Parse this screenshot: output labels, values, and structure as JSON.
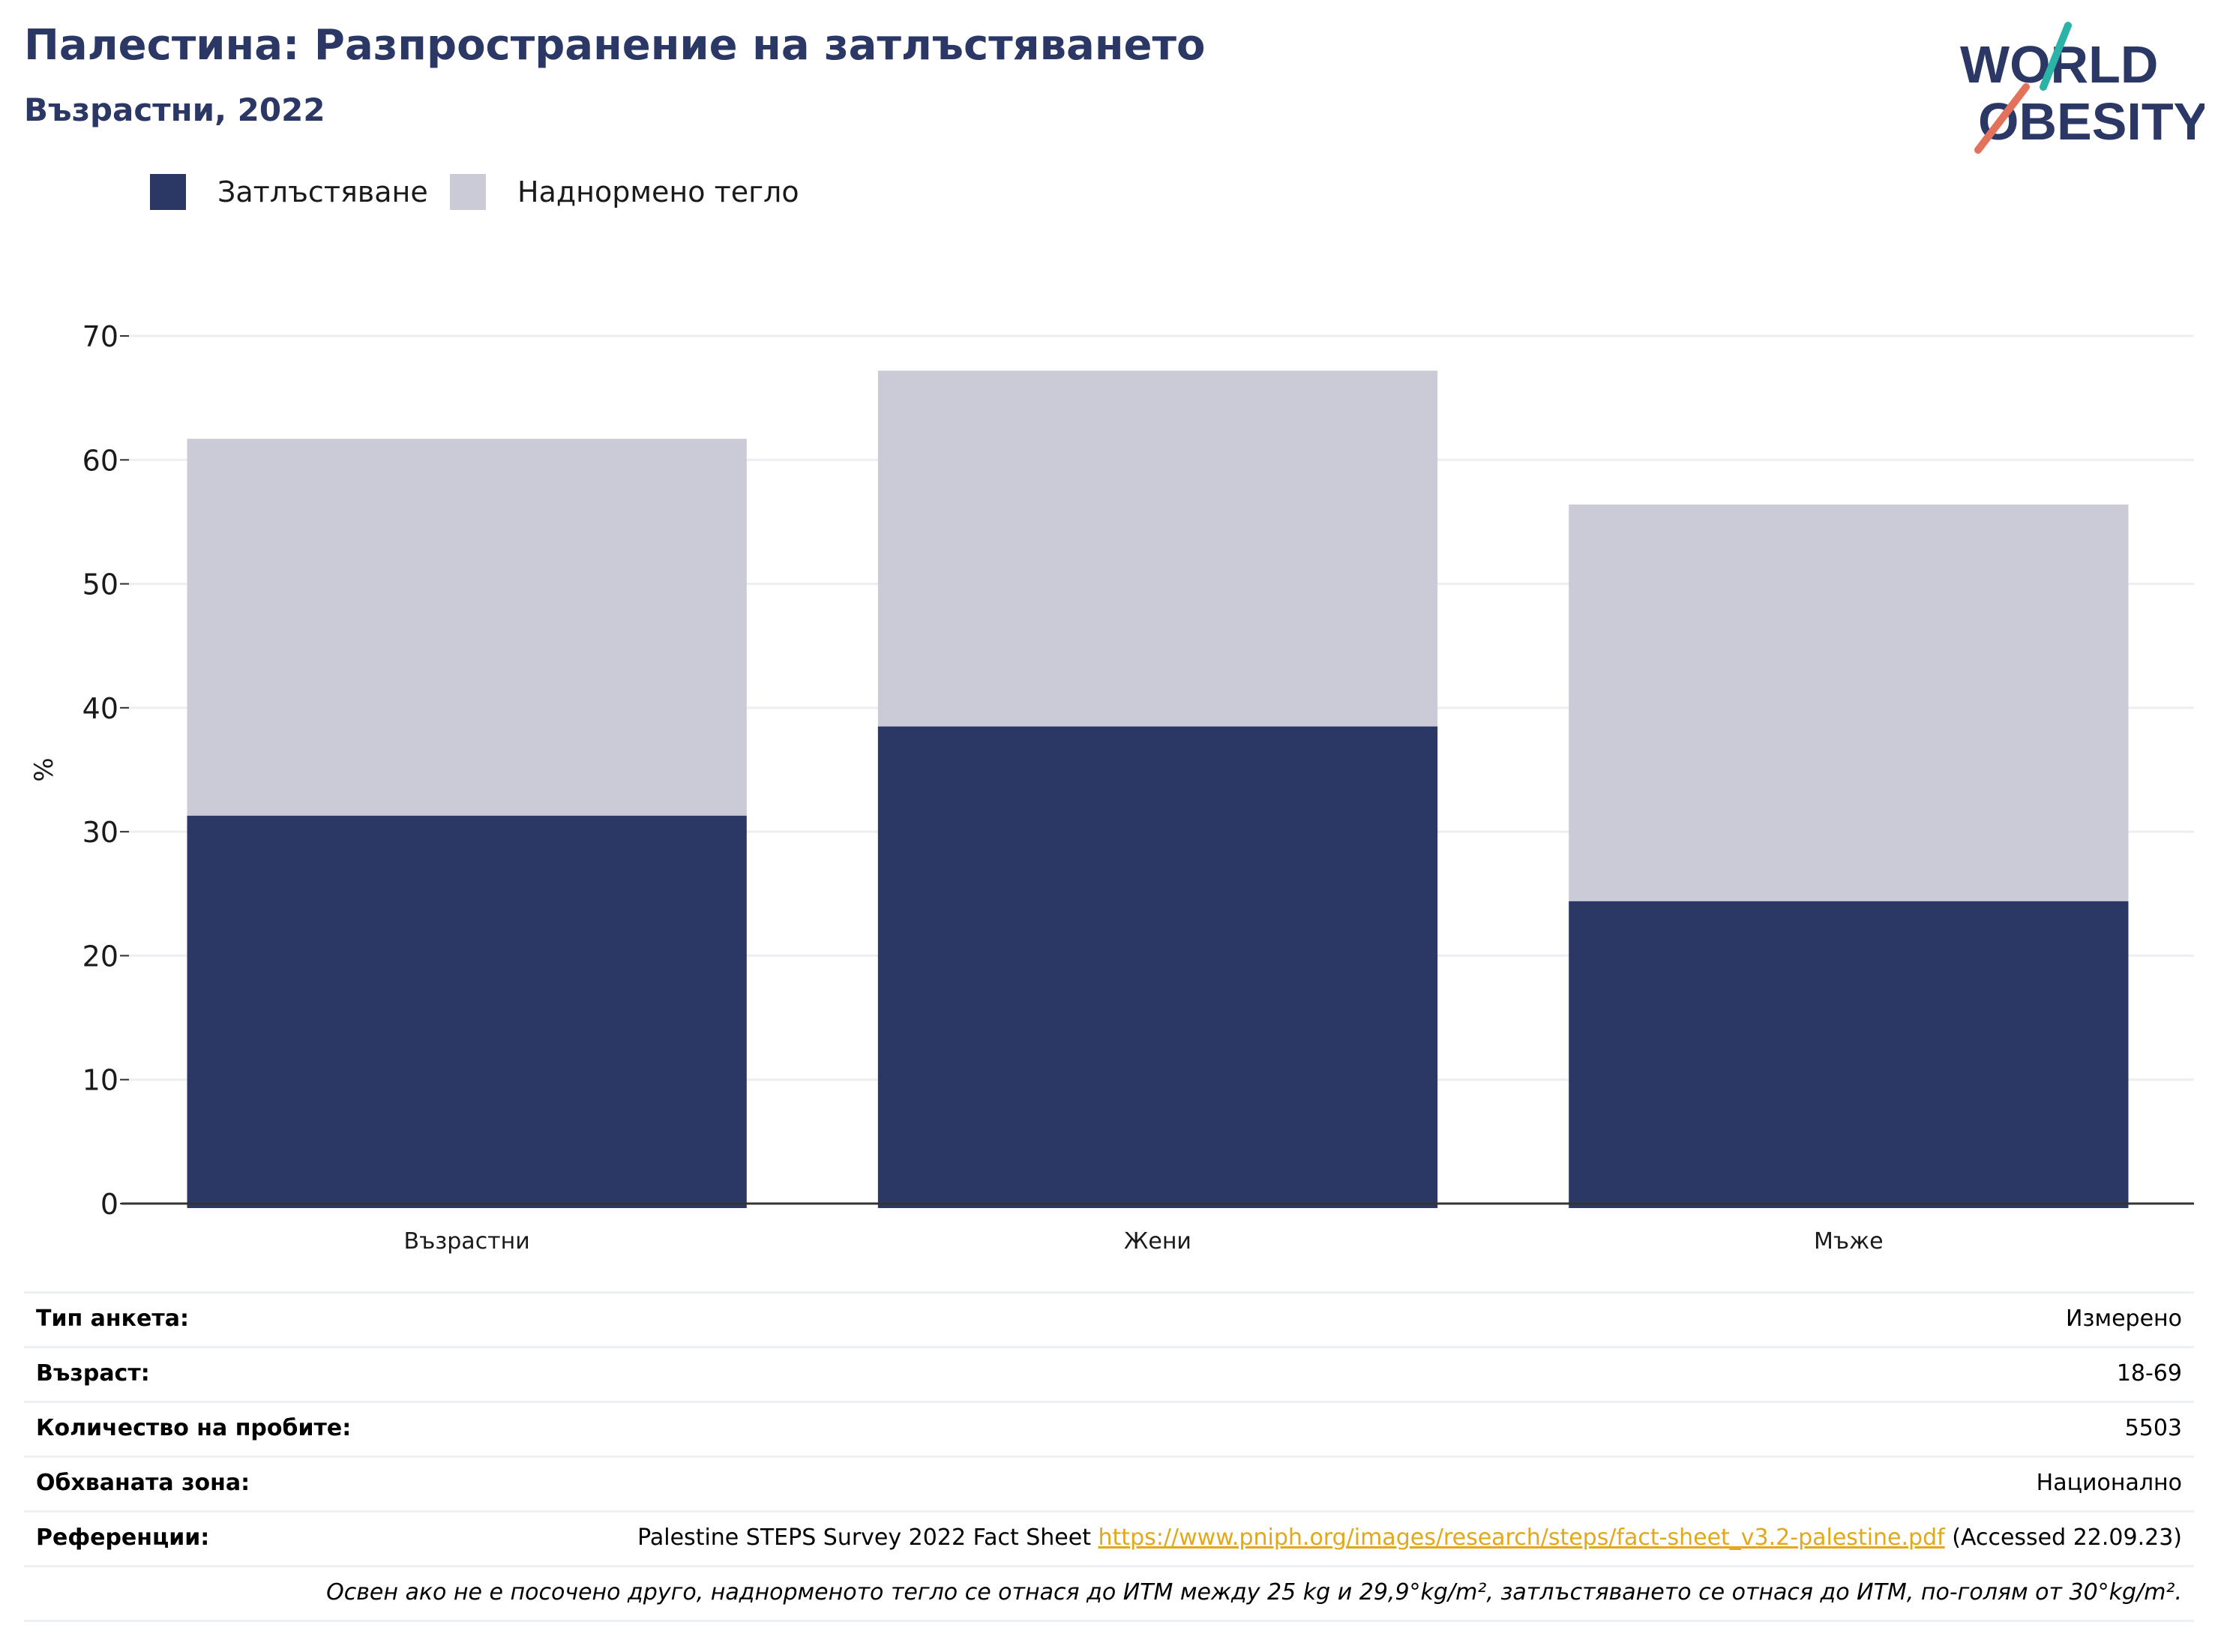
{
  "header": {
    "title": "Палестина: Разпространение на затлъстяването",
    "subtitle": "Възрастни, 2022"
  },
  "logo": {
    "line1": "WORLD",
    "line2": "OBESITY",
    "colors": {
      "navy": "#2b3764",
      "teal": "#2bb3a8",
      "coral": "#e2725b"
    }
  },
  "legend": [
    {
      "label": "Затлъстяване",
      "color": "#2b3764"
    },
    {
      "label": "Наднормено тегло",
      "color": "#cacbd6"
    }
  ],
  "chart_data": {
    "type": "bar",
    "stacked": true,
    "categories": [
      "Възрастни",
      "Жени",
      "Мъже"
    ],
    "series": [
      {
        "name": "Затлъстяване",
        "values": [
          31.3,
          38.5,
          24.4
        ],
        "color": "#2b3764"
      },
      {
        "name": "Наднормено тегло",
        "values": [
          30.4,
          28.7,
          32.0
        ],
        "color": "#cacbd6"
      }
    ],
    "ylabel": "%",
    "ylim": [
      0,
      70
    ],
    "yticks": [
      "0",
      "10",
      "20",
      "30",
      "40",
      "50",
      "60",
      "70"
    ],
    "grid": true,
    "legend_position": "top-left"
  },
  "info": {
    "survey_type": {
      "label": "Тип анкета:",
      "value": "Измерено"
    },
    "age": {
      "label": "Възраст:",
      "value": "18-69"
    },
    "sample_size": {
      "label": "Количество на пробите:",
      "value": "5503"
    },
    "area": {
      "label": "Обхваната зона:",
      "value": "Национално"
    },
    "references": {
      "label": "Референции:",
      "text": "Palestine STEPS Survey 2022 Fact Sheet",
      "link": "https://www.pniph.org/images/research/steps/fact-sheet_v3.2-palestine.pdf",
      "accessed": "(Accessed 22.09.23)"
    },
    "footnote": "Освен ако не е посочено друго, наднорменото тегло се отнася до ИТМ между 25 kg и 29,9°kg/m², затлъстяването се отнася до ИТМ, по-голям от 30°kg/m²."
  }
}
